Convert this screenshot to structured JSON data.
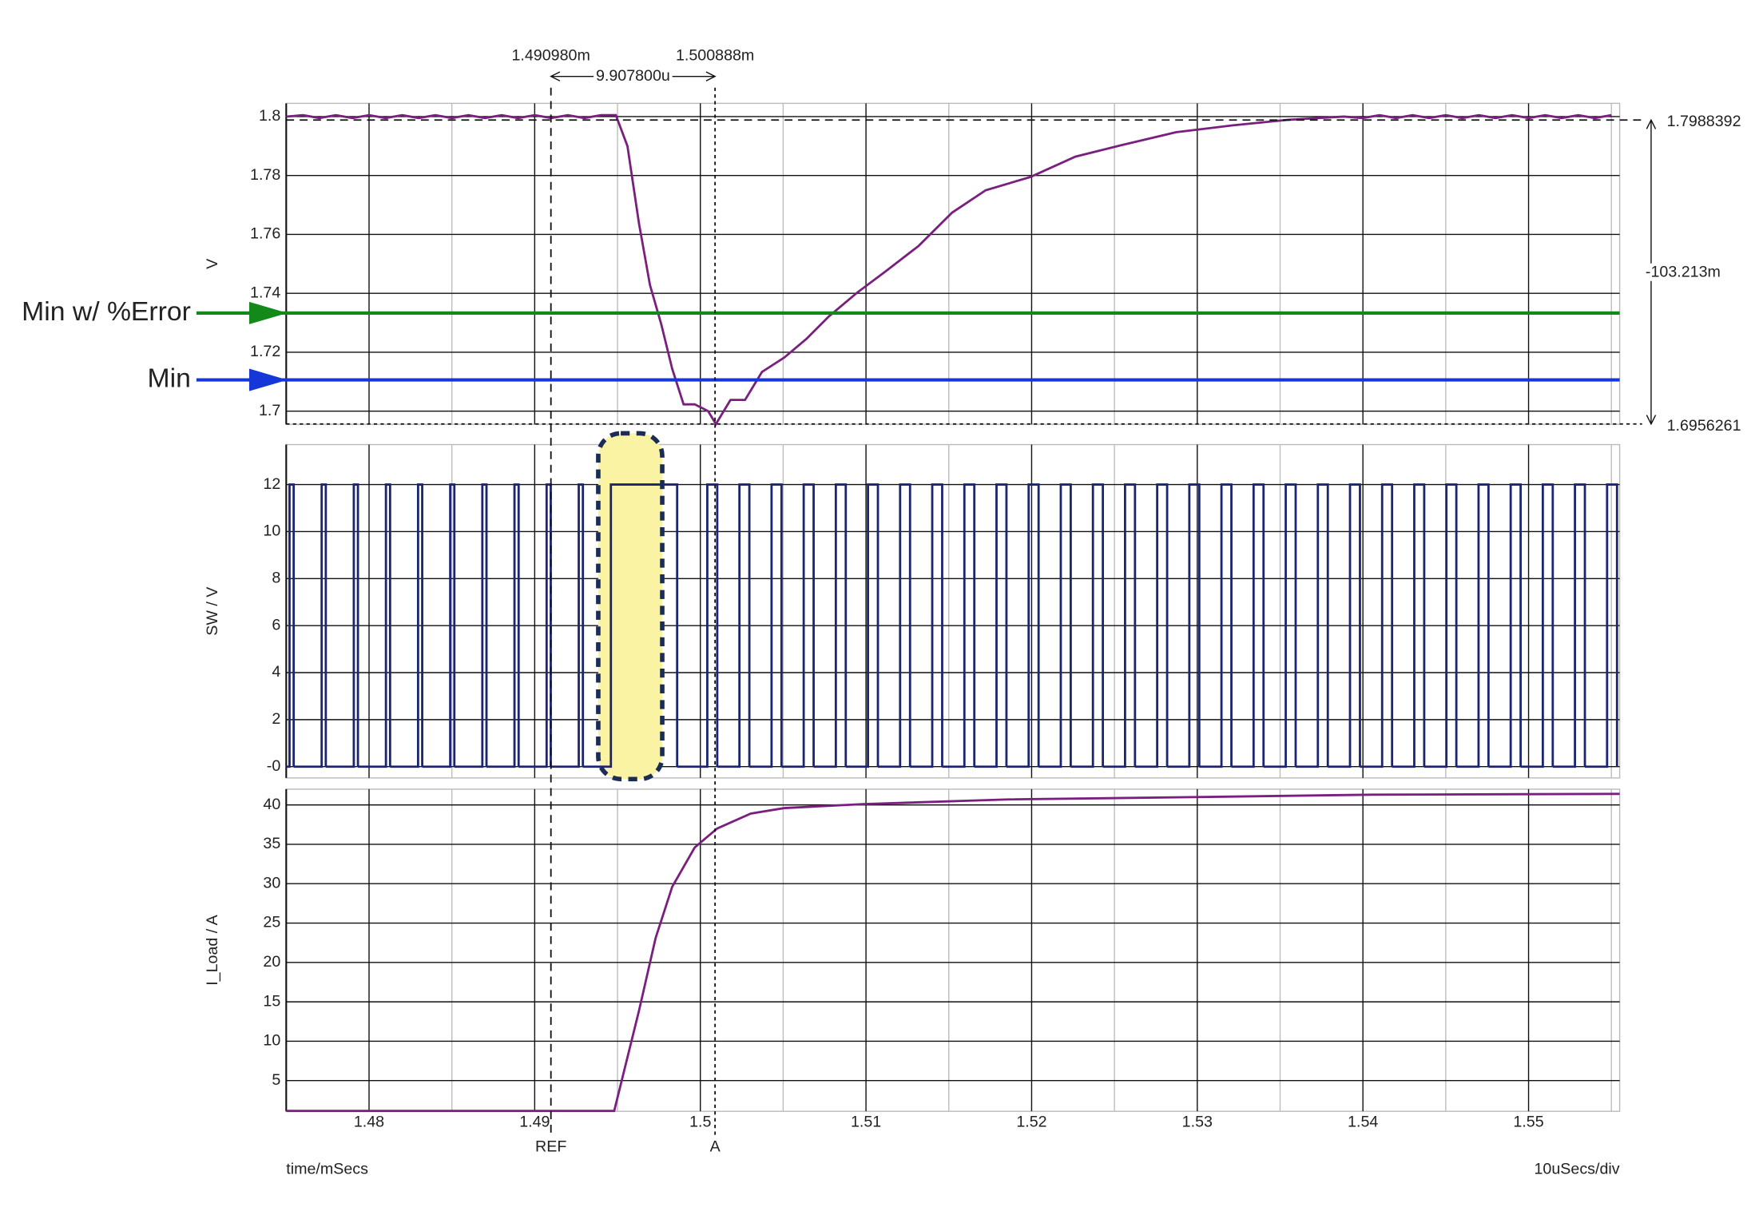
{
  "chart_data": [
    {
      "type": "line",
      "ylabel": "V",
      "color": "#7a1f7e",
      "ylim": [
        1.6955,
        1.8045
      ],
      "yticks": [
        1.7,
        1.72,
        1.74,
        1.76,
        1.78,
        1.8
      ],
      "x": [
        1.475,
        1.476,
        1.477,
        1.478,
        1.479,
        1.48,
        1.481,
        1.482,
        1.483,
        1.484,
        1.485,
        1.486,
        1.487,
        1.488,
        1.489,
        1.49,
        1.491,
        1.492,
        1.493,
        1.494,
        1.4949,
        1.4956,
        1.4963,
        1.49696,
        1.49764,
        1.4983,
        1.49899,
        1.49966,
        1.50047,
        1.50094,
        1.50182,
        1.5027,
        1.50372,
        1.50507,
        1.50642,
        1.50777,
        1.50946,
        1.51115,
        1.51318,
        1.5152,
        1.51723,
        1.51993,
        1.52264,
        1.52534,
        1.52872,
        1.5321,
        1.53547,
        1.53885,
        1.54,
        1.541,
        1.542,
        1.543,
        1.544,
        1.545,
        1.546,
        1.547,
        1.548,
        1.549,
        1.55,
        1.551,
        1.552,
        1.553,
        1.554,
        1.555
      ],
      "values": [
        1.8,
        1.8005,
        1.7995,
        1.8005,
        1.7995,
        1.8005,
        1.7995,
        1.8005,
        1.7995,
        1.8005,
        1.7995,
        1.8005,
        1.7995,
        1.8005,
        1.7995,
        1.8005,
        1.7995,
        1.8005,
        1.7995,
        1.8005,
        1.8005,
        1.79,
        1.7636,
        1.7428,
        1.7295,
        1.7144,
        1.7023,
        1.7023,
        1.7,
        1.6956,
        1.7038,
        1.7038,
        1.7133,
        1.7182,
        1.7246,
        1.7322,
        1.7402,
        1.7473,
        1.7561,
        1.7674,
        1.775,
        1.7795,
        1.7864,
        1.7902,
        1.7947,
        1.797,
        1.7989,
        1.8,
        1.7995,
        1.8005,
        1.7995,
        1.8005,
        1.7995,
        1.8005,
        1.7995,
        1.8005,
        1.7995,
        1.8005,
        1.7995,
        1.8005,
        1.7995,
        1.8005,
        1.7995,
        1.8005
      ],
      "reference_lines": [
        {
          "label": "Min w/ %Error",
          "value": 1.7333,
          "color": "#13891a"
        },
        {
          "label": "Min",
          "value": 1.7106,
          "color": "#1637d8"
        }
      ]
    },
    {
      "type": "pulse",
      "ylabel": "SW / V",
      "color": "#1c2670",
      "ylim": [
        -0.48,
        13.7
      ],
      "yticks": [
        {
          "value": 0,
          "label": "-0"
        },
        2,
        4,
        6,
        8,
        10,
        12
      ],
      "x_start": [
        1.4752,
        1.47714,
        1.47908,
        1.48102,
        1.48296,
        1.4849,
        1.48684,
        1.48878,
        1.49072,
        1.49266,
        1.4946,
        1.50042,
        1.50236,
        1.5043,
        1.50624,
        1.50818,
        1.51012,
        1.51206,
        1.514,
        1.51594,
        1.51788,
        1.51982,
        1.52176,
        1.5237,
        1.52564,
        1.52758,
        1.52952,
        1.53146,
        1.5334,
        1.53534,
        1.53728,
        1.53922,
        1.54116,
        1.5431,
        1.54504,
        1.54698,
        1.54892,
        1.55086,
        1.5528,
        1.55474
      ],
      "x_end": [
        1.47545,
        1.47739,
        1.47933,
        1.48127,
        1.48321,
        1.48515,
        1.48709,
        1.48903,
        1.49097,
        1.49291,
        1.4986,
        1.50102,
        1.50296,
        1.5049,
        1.50684,
        1.50878,
        1.51072,
        1.51266,
        1.5146,
        1.51654,
        1.51848,
        1.52042,
        1.52236,
        1.5243,
        1.52624,
        1.52818,
        1.53012,
        1.53206,
        1.534,
        1.53594,
        1.53788,
        1.53982,
        1.54176,
        1.5437,
        1.54564,
        1.54758,
        1.54952,
        1.55146,
        1.5534,
        1.55534
      ],
      "values": [
        12,
        12,
        12,
        12,
        12,
        12,
        12,
        12,
        12,
        12,
        12,
        12,
        12,
        12,
        12,
        12,
        12,
        12,
        12,
        12,
        12,
        12,
        12,
        12,
        12,
        12,
        12,
        12,
        12,
        12,
        12,
        12,
        12,
        12,
        12,
        12,
        12,
        12,
        12,
        12
      ]
    },
    {
      "type": "line",
      "ylabel": "I_Load / A",
      "color": "#7a1f7e",
      "ylim": [
        1.1,
        42
      ],
      "yticks": [
        5,
        10,
        15,
        20,
        25,
        30,
        35,
        40
      ],
      "x": [
        1.475,
        1.4948,
        1.4963,
        1.4973,
        1.4983,
        1.49966,
        1.50101,
        1.50304,
        1.50507,
        1.5098,
        1.51858,
        1.53007,
        1.54054,
        1.5555
      ],
      "values": [
        1.15,
        1.15,
        13.9,
        23.1,
        29.6,
        34.6,
        37,
        38.9,
        39.6,
        40.1,
        40.7,
        41,
        41.3,
        41.4
      ]
    }
  ],
  "x_axis": {
    "xlim": [
      1.475,
      1.5555
    ],
    "xticks": [
      1.48,
      1.49,
      1.5,
      1.51,
      1.52,
      1.53,
      1.54,
      1.55
    ],
    "xminorticks": [
      1.485,
      1.495,
      1.505,
      1.515,
      1.525,
      1.535,
      1.545,
      1.555
    ],
    "xlabel": "time/mSecs",
    "scale_label": "10uSecs/div"
  },
  "cursors": {
    "points": [
      {
        "label": "REF",
        "x": {
          "value": 1.49098,
          "label": "1.490980m"
        },
        "y": 1.7988392
      },
      {
        "label": "A",
        "x": {
          "value": 1.500888,
          "label": "1.500888m"
        },
        "y": 1.6956261
      }
    ],
    "dx_label": "9.907800u",
    "dy_label": "-103.213m"
  }
}
